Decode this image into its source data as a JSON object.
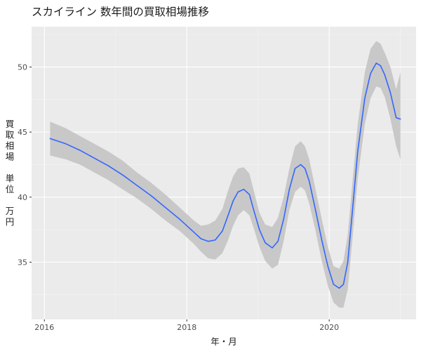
{
  "chart_data": {
    "type": "line",
    "title": "スカイライン 数年間の買取相場推移",
    "xlabel": "年・月",
    "ylabel": [
      "買",
      "取",
      "相",
      "場",
      "",
      "単",
      "位",
      "",
      "万",
      "円"
    ],
    "xlim": [
      2015.82,
      2021.22
    ],
    "ylim": [
      30.6,
      53.1
    ],
    "x_ticks": [
      2016,
      2018,
      2020
    ],
    "x_tick_labels": [
      "2016",
      "2018",
      "2020"
    ],
    "y_ticks": [
      35,
      40,
      45,
      50
    ],
    "y_tick_labels": [
      "35",
      "40",
      "45",
      "50"
    ],
    "grid": true,
    "series": [
      {
        "color": "#3366ff",
        "band_color": "#c8c8c8",
        "x": [
          2016.08,
          2016.3,
          2016.5,
          2016.7,
          2016.9,
          2017.1,
          2017.3,
          2017.5,
          2017.7,
          2017.9,
          2018.1,
          2018.2,
          2018.3,
          2018.4,
          2018.5,
          2018.58,
          2018.65,
          2018.72,
          2018.8,
          2018.88,
          2018.94,
          2019.02,
          2019.1,
          2019.2,
          2019.28,
          2019.36,
          2019.44,
          2019.52,
          2019.6,
          2019.66,
          2019.72,
          2019.8,
          2019.9,
          2019.98,
          2020.06,
          2020.14,
          2020.2,
          2020.26,
          2020.32,
          2020.4,
          2020.5,
          2020.58,
          2020.66,
          2020.72,
          2020.78,
          2020.86,
          2020.94,
          2021.0
        ],
        "y": [
          44.5,
          44.1,
          43.6,
          43.0,
          42.4,
          41.7,
          40.9,
          40.1,
          39.2,
          38.3,
          37.3,
          36.8,
          36.6,
          36.7,
          37.4,
          38.6,
          39.7,
          40.4,
          40.6,
          40.2,
          39.0,
          37.5,
          36.5,
          36.1,
          36.6,
          38.3,
          40.6,
          42.2,
          42.5,
          42.2,
          41.2,
          39.2,
          36.6,
          34.7,
          33.3,
          33.0,
          33.3,
          35.0,
          38.6,
          43.5,
          47.6,
          49.5,
          50.3,
          50.1,
          49.4,
          48.0,
          46.1,
          46.0
        ],
        "lower": [
          43.2,
          42.9,
          42.5,
          41.9,
          41.3,
          40.6,
          39.9,
          39.1,
          38.2,
          37.4,
          36.4,
          35.8,
          35.3,
          35.2,
          35.7,
          36.7,
          37.8,
          38.6,
          39.0,
          38.6,
          37.6,
          36.2,
          35.1,
          34.5,
          34.8,
          36.6,
          39.0,
          40.4,
          40.8,
          40.5,
          39.5,
          37.6,
          35.0,
          33.2,
          31.9,
          31.5,
          31.5,
          32.9,
          36.4,
          41.4,
          45.6,
          47.6,
          48.5,
          48.4,
          47.7,
          46.0,
          43.9,
          42.9
        ],
        "upper": [
          45.8,
          45.3,
          44.7,
          44.1,
          43.5,
          42.8,
          41.9,
          41.1,
          40.2,
          39.2,
          38.2,
          37.8,
          37.9,
          38.2,
          39.1,
          40.5,
          41.6,
          42.2,
          42.3,
          41.8,
          40.5,
          38.8,
          37.9,
          37.7,
          38.4,
          40.0,
          42.2,
          43.9,
          44.3,
          43.9,
          42.9,
          40.8,
          38.2,
          36.2,
          34.7,
          34.5,
          35.1,
          37.1,
          40.8,
          45.6,
          49.6,
          51.4,
          52.0,
          51.8,
          51.1,
          50.0,
          48.3,
          49.6
        ]
      }
    ]
  }
}
